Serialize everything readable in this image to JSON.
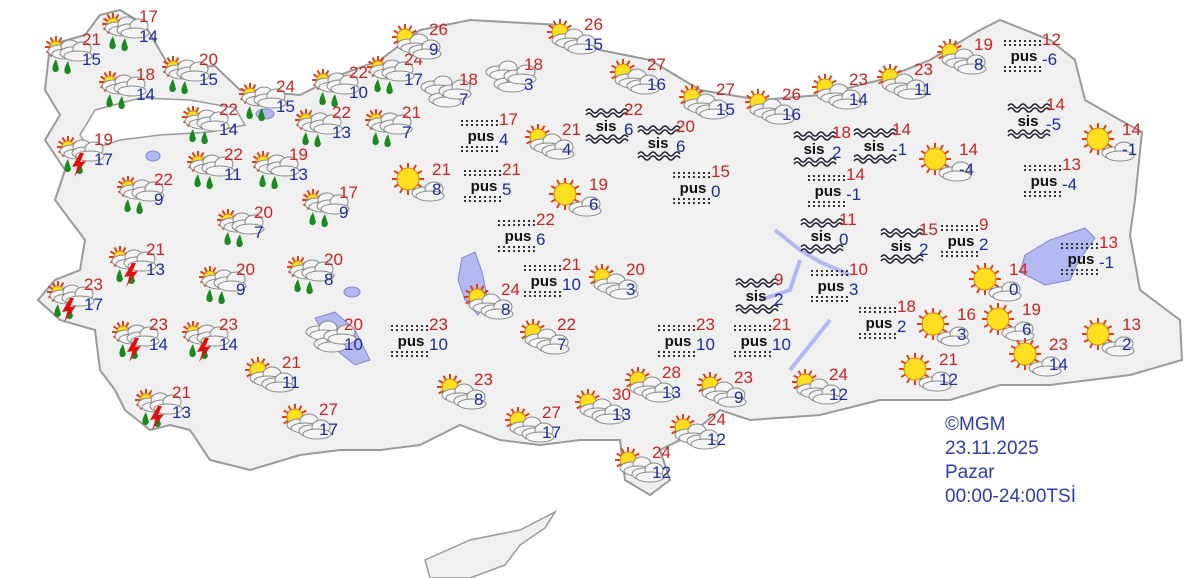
{
  "credit": {
    "source": "©MGM",
    "date": "23.11.2025",
    "day": "Pazar",
    "period": "00:00-24:00TSİ"
  },
  "colors": {
    "max_temp": "#cc2222",
    "min_temp": "#1c2c9c",
    "land": "#f0f0f0",
    "border": "#9a9a9a",
    "water": "#b4b8f0",
    "credit": "#2b3cb4"
  },
  "labels": {
    "pus": "pus",
    "sis": "sis"
  },
  "stations": [
    {
      "icon": "rain",
      "max": "21",
      "min": "15"
    },
    {
      "icon": "rain",
      "max": "17",
      "min": "14"
    },
    {
      "icon": "rain",
      "max": "18",
      "min": "14"
    },
    {
      "icon": "rain",
      "max": "20",
      "min": "15"
    },
    {
      "icon": "rain",
      "max": "24",
      "min": "15"
    },
    {
      "icon": "rain",
      "max": "22",
      "min": "14"
    },
    {
      "icon": "rain",
      "max": "22",
      "min": "10"
    },
    {
      "icon": "rain",
      "max": "24",
      "min": "17"
    },
    {
      "icon": "rain",
      "max": "22",
      "min": "13"
    },
    {
      "icon": "rain",
      "max": "21",
      "min": "7"
    },
    {
      "icon": "thunder",
      "max": "19",
      "min": "17"
    },
    {
      "icon": "rain",
      "max": "22",
      "min": "11"
    },
    {
      "icon": "rain",
      "max": "19",
      "min": "13"
    },
    {
      "icon": "rain",
      "max": "22",
      "min": "9"
    },
    {
      "icon": "rain",
      "max": "17",
      "min": "9"
    },
    {
      "icon": "rain",
      "max": "20",
      "min": "7"
    },
    {
      "icon": "thunder",
      "max": "21",
      "min": "13"
    },
    {
      "icon": "rain",
      "max": "20",
      "min": "9"
    },
    {
      "icon": "rain",
      "max": "20",
      "min": "8"
    },
    {
      "icon": "thunder",
      "max": "23",
      "min": "17"
    },
    {
      "icon": "thunder",
      "max": "23",
      "min": "14"
    },
    {
      "icon": "thunder",
      "max": "23",
      "min": "14"
    },
    {
      "icon": "cloudy",
      "max": "20",
      "min": "10"
    },
    {
      "icon": "partly",
      "max": "21",
      "min": "11"
    },
    {
      "icon": "thunder",
      "max": "21",
      "min": "13"
    },
    {
      "icon": "partly",
      "max": "27",
      "min": "17"
    },
    {
      "icon": "partly",
      "max": "26",
      "min": "9"
    },
    {
      "icon": "cloudy",
      "max": "18",
      "min": "7"
    },
    {
      "icon": "cloudy",
      "max": "18",
      "min": "3"
    },
    {
      "icon": "pus",
      "max": "17",
      "min": "4"
    },
    {
      "icon": "partly",
      "max": "21",
      "min": "4"
    },
    {
      "icon": "sunny",
      "max": "21",
      "min": "8"
    },
    {
      "icon": "pus",
      "max": "21",
      "min": "5"
    },
    {
      "icon": "sunny",
      "max": "19",
      "min": "6"
    },
    {
      "icon": "pus",
      "max": "22",
      "min": "6"
    },
    {
      "icon": "partly",
      "max": "26",
      "min": "15"
    },
    {
      "icon": "partly",
      "max": "27",
      "min": "16"
    },
    {
      "icon": "sis",
      "max": "22",
      "min": "6"
    },
    {
      "icon": "sis",
      "max": "20",
      "min": "6"
    },
    {
      "icon": "pus",
      "max": "15",
      "min": "0"
    },
    {
      "icon": "partly",
      "max": "27",
      "min": "15"
    },
    {
      "icon": "partly",
      "max": "26",
      "min": "16"
    },
    {
      "icon": "pus",
      "max": "21",
      "min": "10"
    },
    {
      "icon": "partly",
      "max": "20",
      "min": "3"
    },
    {
      "icon": "partly",
      "max": "24",
      "min": "8"
    },
    {
      "icon": "pus",
      "max": "23",
      "min": "10"
    },
    {
      "icon": "partly",
      "max": "22",
      "min": "7"
    },
    {
      "icon": "partly",
      "max": "23",
      "min": "8"
    },
    {
      "icon": "pus",
      "max": "23",
      "min": "10"
    },
    {
      "icon": "pus",
      "max": "21",
      "min": "10"
    },
    {
      "icon": "partly",
      "max": "28",
      "min": "13"
    },
    {
      "icon": "partly",
      "max": "23",
      "min": "9"
    },
    {
      "icon": "partly",
      "max": "30",
      "min": "13"
    },
    {
      "icon": "partly",
      "max": "27",
      "min": "17"
    },
    {
      "icon": "partly",
      "max": "24",
      "min": "12"
    },
    {
      "icon": "partly",
      "max": "24",
      "min": "12"
    },
    {
      "icon": "partly",
      "max": "24",
      "min": "12"
    },
    {
      "icon": "partly",
      "max": "23",
      "min": "14"
    },
    {
      "icon": "partly",
      "max": "23",
      "min": "11"
    },
    {
      "icon": "partly",
      "max": "19",
      "min": "8"
    },
    {
      "icon": "pus",
      "max": "12",
      "min": "-6"
    },
    {
      "icon": "sis",
      "max": "18",
      "min": "2"
    },
    {
      "icon": "sis",
      "max": "14",
      "min": "-1"
    },
    {
      "icon": "sunny",
      "max": "14",
      "min": "-4"
    },
    {
      "icon": "sis",
      "max": "14",
      "min": "-5"
    },
    {
      "icon": "sunny",
      "max": "14",
      "min": "-1"
    },
    {
      "icon": "pus",
      "max": "14",
      "min": "-1"
    },
    {
      "icon": "pus",
      "max": "13",
      "min": "-4"
    },
    {
      "icon": "sis",
      "max": "11",
      "min": "0"
    },
    {
      "icon": "sis",
      "max": "15",
      "min": "2"
    },
    {
      "icon": "pus",
      "max": "9",
      "min": "2"
    },
    {
      "icon": "pus",
      "max": "13",
      "min": "-1"
    },
    {
      "icon": "sunny",
      "max": "14",
      "min": "0"
    },
    {
      "icon": "pus",
      "max": "10",
      "min": "3"
    },
    {
      "icon": "sis",
      "max": "9",
      "min": "2"
    },
    {
      "icon": "pus",
      "max": "18",
      "min": "2"
    },
    {
      "icon": "sunny",
      "max": "16",
      "min": "3"
    },
    {
      "icon": "sunny",
      "max": "19",
      "min": "6"
    },
    {
      "icon": "sunny",
      "max": "13",
      "min": "2"
    },
    {
      "icon": "sunny",
      "max": "23",
      "min": "14"
    },
    {
      "icon": "sunny",
      "max": "21",
      "min": "12"
    }
  ]
}
